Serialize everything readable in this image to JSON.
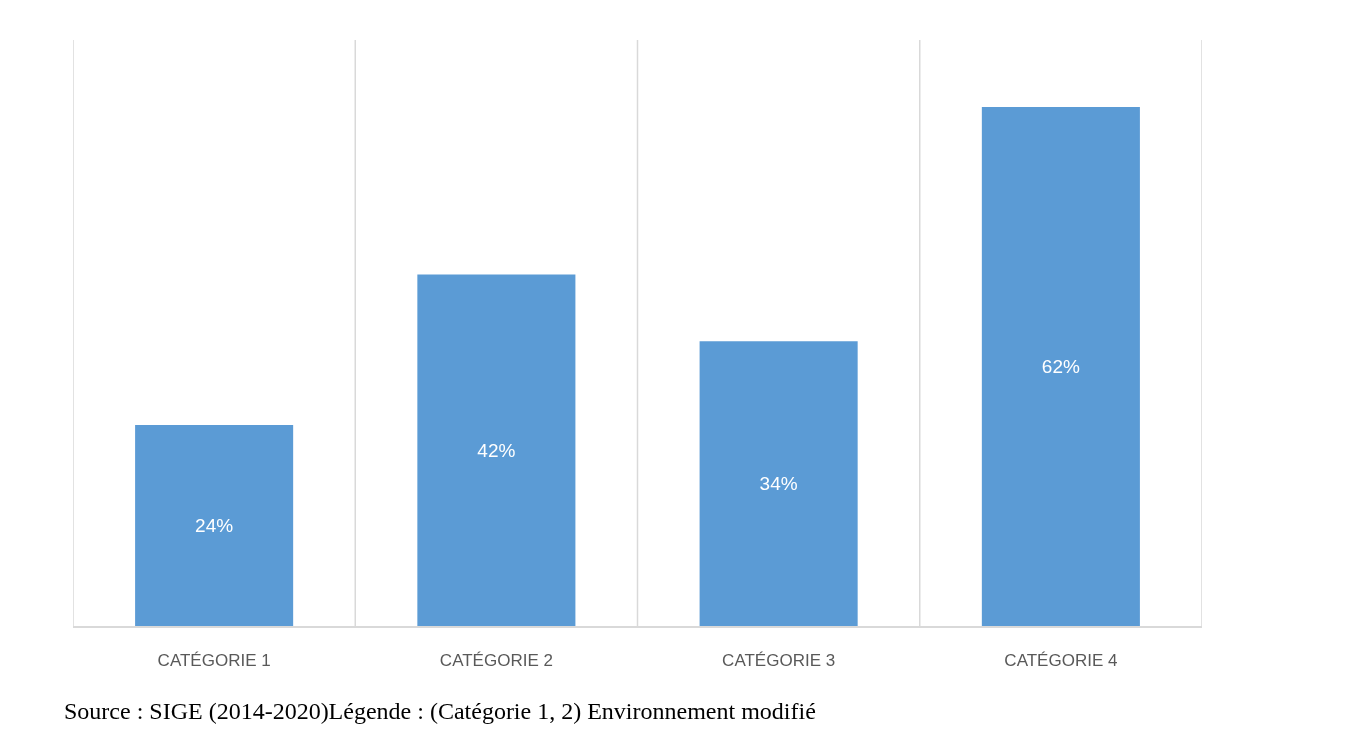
{
  "chart_data": {
    "type": "bar",
    "categories": [
      "CATÉGORIE 1",
      "CATÉGORIE 2",
      "CATÉGORIE 3",
      "CATÉGORIE 4"
    ],
    "values": [
      24,
      42,
      34,
      62
    ],
    "value_labels": [
      "24%",
      "42%",
      "34%",
      "62%"
    ],
    "color": "#5b9bd5",
    "ylim": [
      0,
      70
    ],
    "grid": "x",
    "annotations": [
      "Source : SIGE (2014-2020)Légende : (Catégorie 1, 2) Environnement modifié"
    ]
  }
}
